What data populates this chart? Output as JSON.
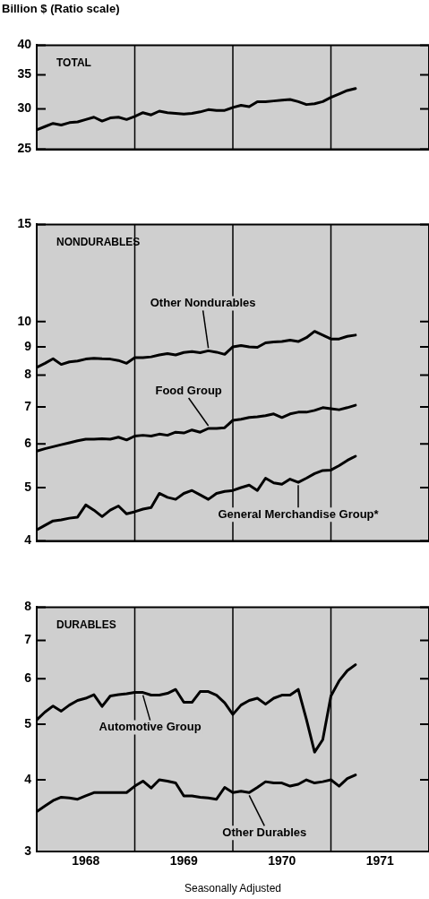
{
  "chart_data": [
    {
      "type": "line",
      "title": "TOTAL",
      "ylabel": "Billion $ (Ratio scale)",
      "x": [
        "1968-01",
        "1968-02",
        "1968-03",
        "1968-04",
        "1968-05",
        "1968-06",
        "1968-07",
        "1968-08",
        "1968-09",
        "1968-10",
        "1968-11",
        "1968-12",
        "1969-01",
        "1969-02",
        "1969-03",
        "1969-04",
        "1969-05",
        "1969-06",
        "1969-07",
        "1969-08",
        "1969-09",
        "1969-10",
        "1969-11",
        "1969-12",
        "1970-01",
        "1970-02",
        "1970-03",
        "1970-04",
        "1970-05",
        "1970-06",
        "1970-07",
        "1970-08",
        "1970-09",
        "1970-10",
        "1970-11",
        "1970-12",
        "1971-01",
        "1971-02",
        "1971-03",
        "1971-04"
      ],
      "series": [
        {
          "color": "#000000",
          "values": [
            27.3,
            27.7,
            28.1,
            27.9,
            28.2,
            28.3,
            28.6,
            28.9,
            28.4,
            28.8,
            28.9,
            28.6,
            29.0,
            29.5,
            29.2,
            29.7,
            29.5,
            29.4,
            29.3,
            29.4,
            29.6,
            29.9,
            29.8,
            29.8,
            30.2,
            30.5,
            30.3,
            31.0,
            31.0,
            31.1,
            31.2,
            31.3,
            31.0,
            30.6,
            30.7,
            31.0,
            31.6,
            32.1,
            32.6,
            32.9
          ]
        }
      ],
      "xlim": [
        "1968-01",
        "1972-01"
      ],
      "ylim": [
        25,
        40
      ],
      "yticks": [
        25,
        30,
        35,
        40
      ],
      "log": "y",
      "tick_labels": "y",
      "ref_lines": [
        {
          "axis": "x",
          "value": "1969-01"
        },
        {
          "axis": "x",
          "value": "1970-01"
        },
        {
          "axis": "x",
          "value": "1971-01"
        }
      ]
    },
    {
      "type": "line",
      "title": "NONDURABLES",
      "x": [
        "1968-01",
        "1968-02",
        "1968-03",
        "1968-04",
        "1968-05",
        "1968-06",
        "1968-07",
        "1968-08",
        "1968-09",
        "1968-10",
        "1968-11",
        "1968-12",
        "1969-01",
        "1969-02",
        "1969-03",
        "1969-04",
        "1969-05",
        "1969-06",
        "1969-07",
        "1969-08",
        "1969-09",
        "1969-10",
        "1969-11",
        "1969-12",
        "1970-01",
        "1970-02",
        "1970-03",
        "1970-04",
        "1970-05",
        "1970-06",
        "1970-07",
        "1970-08",
        "1970-09",
        "1970-10",
        "1970-11",
        "1970-12",
        "1971-01",
        "1971-02",
        "1971-03",
        "1971-04"
      ],
      "series": [
        {
          "name": "Other Nondurables",
          "color": "#000000",
          "values": [
            8.26,
            8.4,
            8.56,
            8.36,
            8.45,
            8.48,
            8.55,
            8.58,
            8.56,
            8.55,
            8.5,
            8.4,
            8.6,
            8.6,
            8.63,
            8.7,
            8.75,
            8.7,
            8.79,
            8.82,
            8.78,
            8.85,
            8.8,
            8.72,
            9.0,
            9.05,
            9.0,
            8.98,
            9.15,
            9.18,
            9.2,
            9.25,
            9.2,
            9.35,
            9.6,
            9.45,
            9.3,
            9.3,
            9.4,
            9.45
          ]
        },
        {
          "name": "Food Group",
          "color": "#000000",
          "values": [
            5.82,
            5.88,
            5.93,
            5.98,
            6.03,
            6.08,
            6.12,
            6.12,
            6.13,
            6.12,
            6.17,
            6.1,
            6.2,
            6.22,
            6.2,
            6.25,
            6.22,
            6.3,
            6.28,
            6.36,
            6.3,
            6.4,
            6.4,
            6.42,
            6.62,
            6.65,
            6.7,
            6.72,
            6.75,
            6.8,
            6.7,
            6.8,
            6.85,
            6.85,
            6.9,
            6.98,
            6.95,
            6.92,
            6.98,
            7.05
          ]
        },
        {
          "name": "General Merchandise Group*",
          "color": "#000000",
          "values": [
            4.19,
            4.27,
            4.35,
            4.37,
            4.4,
            4.42,
            4.65,
            4.55,
            4.43,
            4.55,
            4.63,
            4.48,
            4.52,
            4.57,
            4.6,
            4.88,
            4.8,
            4.76,
            4.88,
            4.94,
            4.85,
            4.76,
            4.88,
            4.92,
            4.94,
            5.0,
            5.05,
            4.94,
            5.2,
            5.1,
            5.07,
            5.18,
            5.11,
            5.2,
            5.3,
            5.37,
            5.38,
            5.48,
            5.6,
            5.7
          ]
        }
      ],
      "xlim": [
        "1968-01",
        "1972-01"
      ],
      "ylim": [
        4,
        15
      ],
      "yticks": [
        4,
        5,
        6,
        7,
        8,
        9,
        10,
        15
      ],
      "log": "y",
      "tick_labels": "y",
      "ref_lines": [
        {
          "axis": "x",
          "value": "1969-01"
        },
        {
          "axis": "x",
          "value": "1970-01"
        },
        {
          "axis": "x",
          "value": "1971-01"
        }
      ]
    },
    {
      "type": "line",
      "title": "DURABLES",
      "xlabel": "Seasonally Adjusted",
      "x": [
        "1968-01",
        "1968-02",
        "1968-03",
        "1968-04",
        "1968-05",
        "1968-06",
        "1968-07",
        "1968-08",
        "1968-09",
        "1968-10",
        "1968-11",
        "1968-12",
        "1969-01",
        "1969-02",
        "1969-03",
        "1969-04",
        "1969-05",
        "1969-06",
        "1969-07",
        "1969-08",
        "1969-09",
        "1969-10",
        "1969-11",
        "1969-12",
        "1970-01",
        "1970-02",
        "1970-03",
        "1970-04",
        "1970-05",
        "1970-06",
        "1970-07",
        "1970-08",
        "1970-09",
        "1970-10",
        "1970-11",
        "1970-12",
        "1971-01",
        "1971-02",
        "1971-03",
        "1971-04"
      ],
      "series": [
        {
          "name": "Automotive Group",
          "color": "#000000",
          "values": [
            5.09,
            5.25,
            5.38,
            5.27,
            5.4,
            5.5,
            5.55,
            5.63,
            5.37,
            5.6,
            5.63,
            5.65,
            5.68,
            5.68,
            5.62,
            5.62,
            5.66,
            5.75,
            5.46,
            5.46,
            5.7,
            5.7,
            5.62,
            5.45,
            5.2,
            5.4,
            5.5,
            5.55,
            5.42,
            5.55,
            5.62,
            5.62,
            5.75,
            5.1,
            4.47,
            4.7,
            5.6,
            5.95,
            6.2,
            6.35
          ]
        },
        {
          "name": "Other Durables",
          "color": "#000000",
          "values": [
            3.52,
            3.6,
            3.68,
            3.73,
            3.72,
            3.7,
            3.75,
            3.8,
            3.8,
            3.8,
            3.8,
            3.8,
            3.9,
            3.98,
            3.87,
            4.0,
            3.98,
            3.95,
            3.75,
            3.75,
            3.73,
            3.72,
            3.7,
            3.88,
            3.8,
            3.82,
            3.8,
            3.88,
            3.97,
            3.95,
            3.95,
            3.9,
            3.93,
            4.0,
            3.95,
            3.97,
            4.0,
            3.9,
            4.02,
            4.08
          ]
        }
      ],
      "xlim": [
        "1968-01",
        "1972-01"
      ],
      "xticks": [
        {
          "value": "1968-07",
          "label": "1968"
        },
        {
          "value": "1969-07",
          "label": "1969"
        },
        {
          "value": "1970-07",
          "label": "1970"
        },
        {
          "value": "1971-07",
          "label": "1971"
        }
      ],
      "ylim": [
        3,
        8
      ],
      "yticks": [
        3,
        4,
        5,
        6,
        7,
        8
      ],
      "log": "y",
      "ref_lines": [
        {
          "axis": "x",
          "value": "1969-01"
        },
        {
          "axis": "x",
          "value": "1970-01"
        },
        {
          "axis": "x",
          "value": "1971-01"
        }
      ]
    }
  ]
}
